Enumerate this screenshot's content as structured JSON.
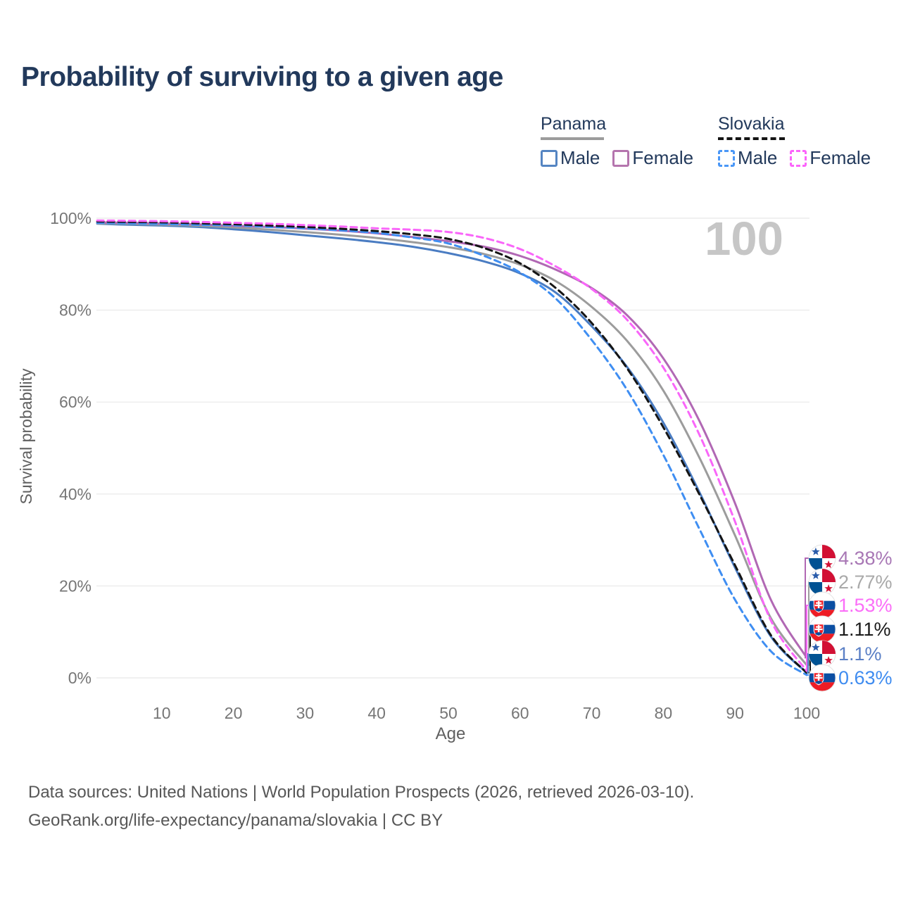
{
  "title": "Probability of surviving to a given age",
  "legend": {
    "groups": [
      {
        "label": "Panama",
        "line_style": "solid",
        "line_color": "#9c9c9c",
        "items": [
          {
            "label": "Male",
            "color": "#5585c2",
            "dash": false
          },
          {
            "label": "Female",
            "color": "#b575ae",
            "dash": false
          }
        ]
      },
      {
        "label": "Slovakia",
        "line_style": "dashed",
        "line_color": "#141414",
        "items": [
          {
            "label": "Male",
            "color": "#4a97f7",
            "dash": true
          },
          {
            "label": "Female",
            "color": "#fc64fb",
            "dash": true
          }
        ]
      }
    ]
  },
  "chart_data": {
    "type": "line",
    "title": "Probability of surviving to a given age",
    "xlabel": "Age",
    "ylabel": "Survival probability",
    "xlim": [
      0,
      100
    ],
    "ylim": [
      0,
      100
    ],
    "x_ticks": [
      10,
      20,
      30,
      40,
      50,
      60,
      70,
      80,
      90,
      100
    ],
    "y_ticks": [
      0,
      20,
      40,
      60,
      80,
      100
    ],
    "y_tick_suffix": "%",
    "grid": "horizontal",
    "hover_age_label": "100",
    "x": [
      1,
      5,
      10,
      15,
      20,
      25,
      30,
      35,
      40,
      45,
      50,
      55,
      60,
      65,
      70,
      75,
      80,
      85,
      90,
      95,
      100
    ],
    "series": [
      {
        "name": "Panama Male",
        "country": "Panama",
        "sex": "Male",
        "color": "#4a7cc2",
        "dash": false,
        "values": [
          98.8,
          98.6,
          98.4,
          98.1,
          97.6,
          97.0,
          96.3,
          95.6,
          94.8,
          93.8,
          92.4,
          90.6,
          88.0,
          83.8,
          76.5,
          67.5,
          55.5,
          40.5,
          24.0,
          9.0,
          1.1
        ]
      },
      {
        "name": "Panama Overall",
        "country": "Panama",
        "sex": "Both",
        "color": "#9c9c9c",
        "dash": false,
        "values": [
          98.9,
          98.8,
          98.6,
          98.35,
          98.0,
          97.5,
          97.0,
          96.4,
          95.7,
          94.8,
          93.7,
          92.2,
          89.9,
          86.3,
          80.7,
          73.2,
          62.5,
          48.0,
          31.0,
          13.0,
          2.77
        ]
      },
      {
        "name": "Panama Female",
        "country": "Panama",
        "sex": "Female",
        "color": "#b168b4",
        "dash": false,
        "values": [
          99.1,
          99.0,
          98.85,
          98.65,
          98.35,
          98.1,
          97.75,
          97.3,
          96.7,
          95.9,
          95.0,
          93.8,
          91.8,
          88.8,
          84.8,
          78.8,
          69.5,
          56.0,
          38.0,
          17.0,
          4.38
        ]
      },
      {
        "name": "Slovakia Male",
        "country": "Slovakia",
        "sex": "Male",
        "color": "#3f8ef2",
        "dash": true,
        "values": [
          99.0,
          98.9,
          98.75,
          98.55,
          98.45,
          98.1,
          97.8,
          97.35,
          96.8,
          95.8,
          94.5,
          91.8,
          88.2,
          82.5,
          73.5,
          62.5,
          48.5,
          32.5,
          17.0,
          5.8,
          0.63
        ]
      },
      {
        "name": "Slovakia Overall",
        "country": "Slovakia",
        "sex": "Both",
        "color": "#151515",
        "dash": true,
        "values": [
          99.3,
          99.2,
          99.1,
          98.9,
          98.7,
          98.4,
          98.1,
          97.7,
          97.2,
          96.5,
          95.5,
          93.5,
          90.2,
          84.8,
          77.2,
          67.2,
          54.5,
          40.0,
          24.5,
          9.3,
          1.11
        ]
      },
      {
        "name": "Slovakia Female",
        "country": "Slovakia",
        "sex": "Female",
        "color": "#f966f9",
        "dash": true,
        "values": [
          99.5,
          99.45,
          99.35,
          99.2,
          99.0,
          98.8,
          98.5,
          98.2,
          97.8,
          97.5,
          97.0,
          95.7,
          93.3,
          89.5,
          84.6,
          77.8,
          67.5,
          53.0,
          34.0,
          12.5,
          1.53
        ]
      }
    ],
    "end_labels": [
      {
        "text": "4.38%",
        "series": "Panama Female",
        "flag": "panama",
        "color": "#a877b5"
      },
      {
        "text": "2.77%",
        "series": "Panama Overall",
        "flag": "panama",
        "color": "#a9a9a9"
      },
      {
        "text": "1.53%",
        "series": "Slovakia Female",
        "flag": "slovakia",
        "color": "#fb6ef8"
      },
      {
        "text": "1.11%",
        "series": "Slovakia Overall",
        "flag": "slovakia",
        "color": "#1a1a1a"
      },
      {
        "text": "1.1%",
        "series": "Panama Male",
        "flag": "panama",
        "color": "#5b80c6"
      },
      {
        "text": "0.63%",
        "series": "Slovakia Male",
        "flag": "slovakia",
        "color": "#3f8cf0"
      }
    ],
    "legend_position": "top-right"
  },
  "footer": {
    "line1": "Data sources: United Nations | World Population Prospects (2026, retrieved 2026-03-10).",
    "line2": "GeoRank.org/life-expectancy/panama/slovakia | CC BY"
  }
}
